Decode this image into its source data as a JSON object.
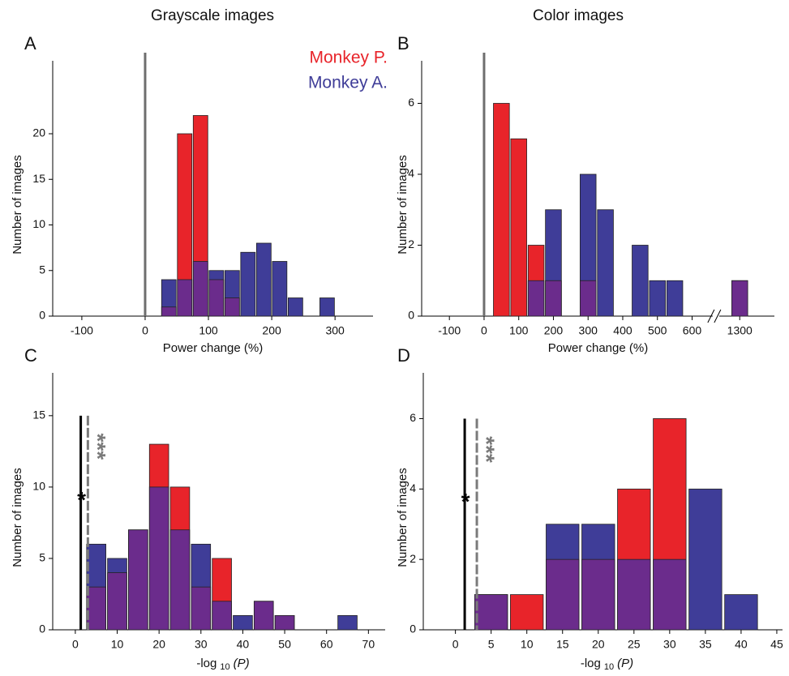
{
  "chart_data": [
    {
      "type": "histogram",
      "panel": "A",
      "title": "Grayscale images",
      "xlabel": "Power change (%)",
      "ylabel": "Number of images",
      "x": [
        37.5,
        62.5,
        87.5,
        112.5,
        137.5,
        162.5,
        187.5,
        212.5,
        237.5,
        262.5,
        287.5
      ],
      "bin_width": 25,
      "series": [
        {
          "name": "Monkey P.",
          "color": "#e8242a",
          "values": [
            1,
            20,
            22,
            4,
            2,
            0,
            0,
            0,
            0,
            0,
            0
          ]
        },
        {
          "name": "Monkey A.",
          "color": "#3f3d98",
          "values": [
            4,
            4,
            6,
            5,
            5,
            7,
            8,
            6,
            2,
            0,
            2
          ]
        }
      ],
      "overlap_color": "#6b2c8c",
      "legend": "upper right",
      "zero_line": true,
      "xlim": [
        -146,
        360
      ],
      "xticks": [
        -100,
        0,
        100,
        200,
        300
      ],
      "ylim": [
        0,
        28
      ],
      "yticks": [
        0,
        5,
        10,
        15,
        20
      ]
    },
    {
      "type": "histogram",
      "panel": "B",
      "title": "Color images",
      "xlabel": "Power change (%)",
      "ylabel": "Number of images",
      "x": [
        50,
        100,
        150,
        200,
        250,
        300,
        350,
        400,
        450,
        500,
        550,
        1300
      ],
      "bin_width": 50,
      "series": [
        {
          "color": "#e8242a",
          "values": [
            6,
            5,
            2,
            1,
            0,
            1,
            0,
            0,
            0,
            0,
            0,
            1
          ]
        },
        {
          "color": "#3f3d98",
          "values": [
            0,
            0,
            1,
            3,
            0,
            4,
            3,
            0,
            2,
            1,
            1,
            1
          ]
        }
      ],
      "overlap_color": "#6b2c8c",
      "zero_line": true,
      "axis_break": [
        650,
        1250
      ],
      "xlim": [
        -180,
        1400
      ],
      "xticks": [
        -100,
        0,
        100,
        200,
        300,
        400,
        500,
        600,
        1300
      ],
      "ylim": [
        0,
        7.2
      ],
      "yticks": [
        0,
        2,
        4,
        6
      ]
    },
    {
      "type": "histogram",
      "panel": "C",
      "xlabel": {
        "text": "-log",
        "sub": "10",
        "var": "(P)"
      },
      "ylabel": "Number of images",
      "x": [
        5,
        10,
        15,
        20,
        25,
        30,
        35,
        40,
        45,
        50,
        55,
        60,
        65
      ],
      "bin_width": 5,
      "series": [
        {
          "color": "#e8242a",
          "values": [
            3,
            4,
            7,
            13,
            10,
            3,
            5,
            0,
            2,
            1,
            0,
            0,
            0
          ]
        },
        {
          "color": "#3f3d98",
          "values": [
            6,
            5,
            7,
            10,
            7,
            6,
            2,
            1,
            2,
            1,
            0,
            0,
            1
          ]
        }
      ],
      "overlap_color": "#6b2c8c",
      "thresholds": [
        {
          "x": 1.3,
          "label": "*",
          "color": "#000000"
        },
        {
          "x": 3,
          "label": "***",
          "color": "#7a7a7a",
          "dashed": true
        }
      ],
      "xlim": [
        -5.4,
        74
      ],
      "xticks": [
        0,
        10,
        20,
        30,
        40,
        50,
        60,
        70
      ],
      "ylim": [
        0,
        18
      ],
      "yticks": [
        0,
        5,
        10,
        15
      ]
    },
    {
      "type": "histogram",
      "panel": "D",
      "xlabel": {
        "text": "-log",
        "sub": "10",
        "var": "(P)"
      },
      "ylabel": "Number of images",
      "x": [
        5,
        10,
        15,
        20,
        25,
        30,
        35,
        40
      ],
      "bin_width": 5,
      "series": [
        {
          "color": "#e8242a",
          "values": [
            1,
            1,
            2,
            2,
            4,
            6,
            0,
            0
          ]
        },
        {
          "color": "#3f3d98",
          "values": [
            1,
            0,
            3,
            3,
            2,
            2,
            4,
            1
          ]
        }
      ],
      "overlap_color": "#6b2c8c",
      "thresholds": [
        {
          "x": 1.3,
          "label": "*",
          "color": "#000000"
        },
        {
          "x": 3,
          "label": "***",
          "color": "#7a7a7a",
          "dashed": true
        }
      ],
      "xlim": [
        -4.5,
        45.8
      ],
      "xticks": [
        0,
        5,
        10,
        15,
        20,
        25,
        30,
        35,
        40,
        45
      ],
      "ylim": [
        0,
        7.3
      ],
      "yticks": [
        0,
        2,
        4,
        6
      ]
    }
  ]
}
